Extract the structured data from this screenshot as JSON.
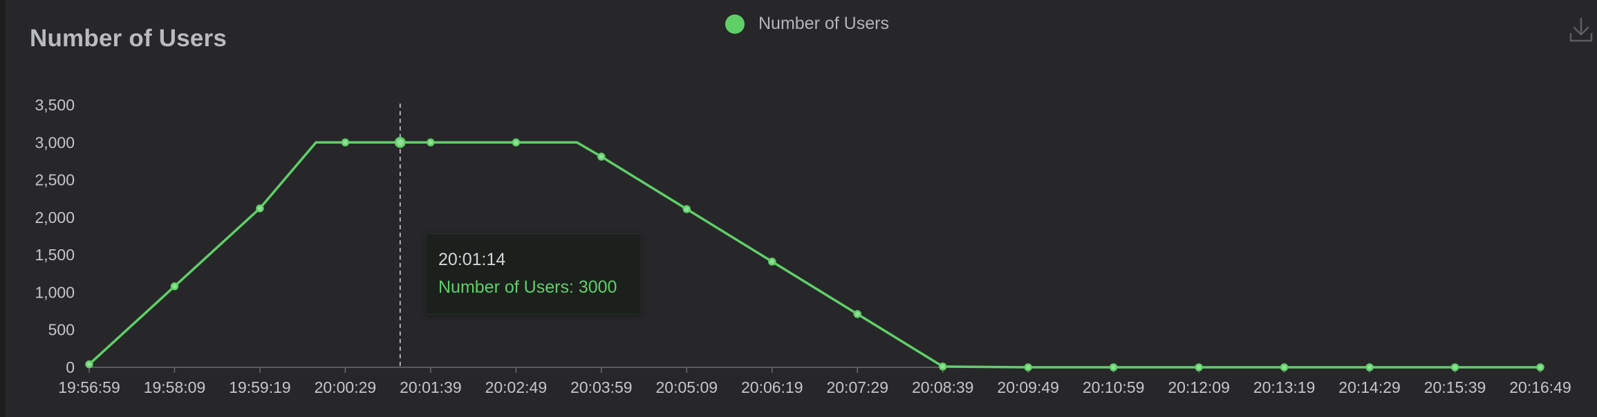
{
  "colors": {
    "series": "#5fd068",
    "background": "#27272a",
    "text": "#c4c6c8"
  },
  "toolbar": {
    "download_icon": "download-icon"
  },
  "tooltip": {
    "time": "20:01:14",
    "label": "Number of Users: 3000"
  },
  "chart_data": {
    "type": "line",
    "title": "Number of Users",
    "legend": {
      "position": "top-center",
      "entries": [
        "Number of Users"
      ]
    },
    "xlabel": "",
    "ylabel": "",
    "ylim": [
      0,
      3500
    ],
    "yticks": [
      0,
      500,
      1000,
      1500,
      2000,
      2500,
      3000,
      3500
    ],
    "ytick_labels": [
      "0",
      "500",
      "1,000",
      "1,500",
      "2,000",
      "2,500",
      "3,000",
      "3,500"
    ],
    "xtick_labels": [
      "19:56:59",
      "19:58:09",
      "19:59:19",
      "20:00:29",
      "20:01:39",
      "20:02:49",
      "20:03:59",
      "20:05:09",
      "20:06:19",
      "20:07:29",
      "20:08:39",
      "20:09:49",
      "20:10:59",
      "20:12:09",
      "20:13:19",
      "20:14:29",
      "20:15:39",
      "20:16:49"
    ],
    "grid": false,
    "series": [
      {
        "name": "Number of Users",
        "x": [
          "19:56:59",
          "19:58:09",
          "19:59:19",
          "20:00:05",
          "20:00:29",
          "20:01:14",
          "20:01:39",
          "20:02:49",
          "20:03:39",
          "20:03:59",
          "20:05:09",
          "20:06:19",
          "20:07:29",
          "20:08:39",
          "20:09:49",
          "20:10:59",
          "20:12:09",
          "20:13:19",
          "20:14:29",
          "20:15:39",
          "20:16:49"
        ],
        "values": [
          40,
          1080,
          2120,
          3000,
          3000,
          3000,
          3000,
          3000,
          3000,
          2810,
          2110,
          1410,
          710,
          10,
          0,
          0,
          0,
          0,
          0,
          0,
          0
        ],
        "markers": [
          true,
          true,
          true,
          false,
          true,
          true,
          true,
          true,
          false,
          true,
          true,
          true,
          true,
          true,
          true,
          true,
          true,
          true,
          true,
          true,
          true
        ]
      }
    ],
    "highlight": {
      "x": "20:01:14",
      "value": 3000
    }
  }
}
